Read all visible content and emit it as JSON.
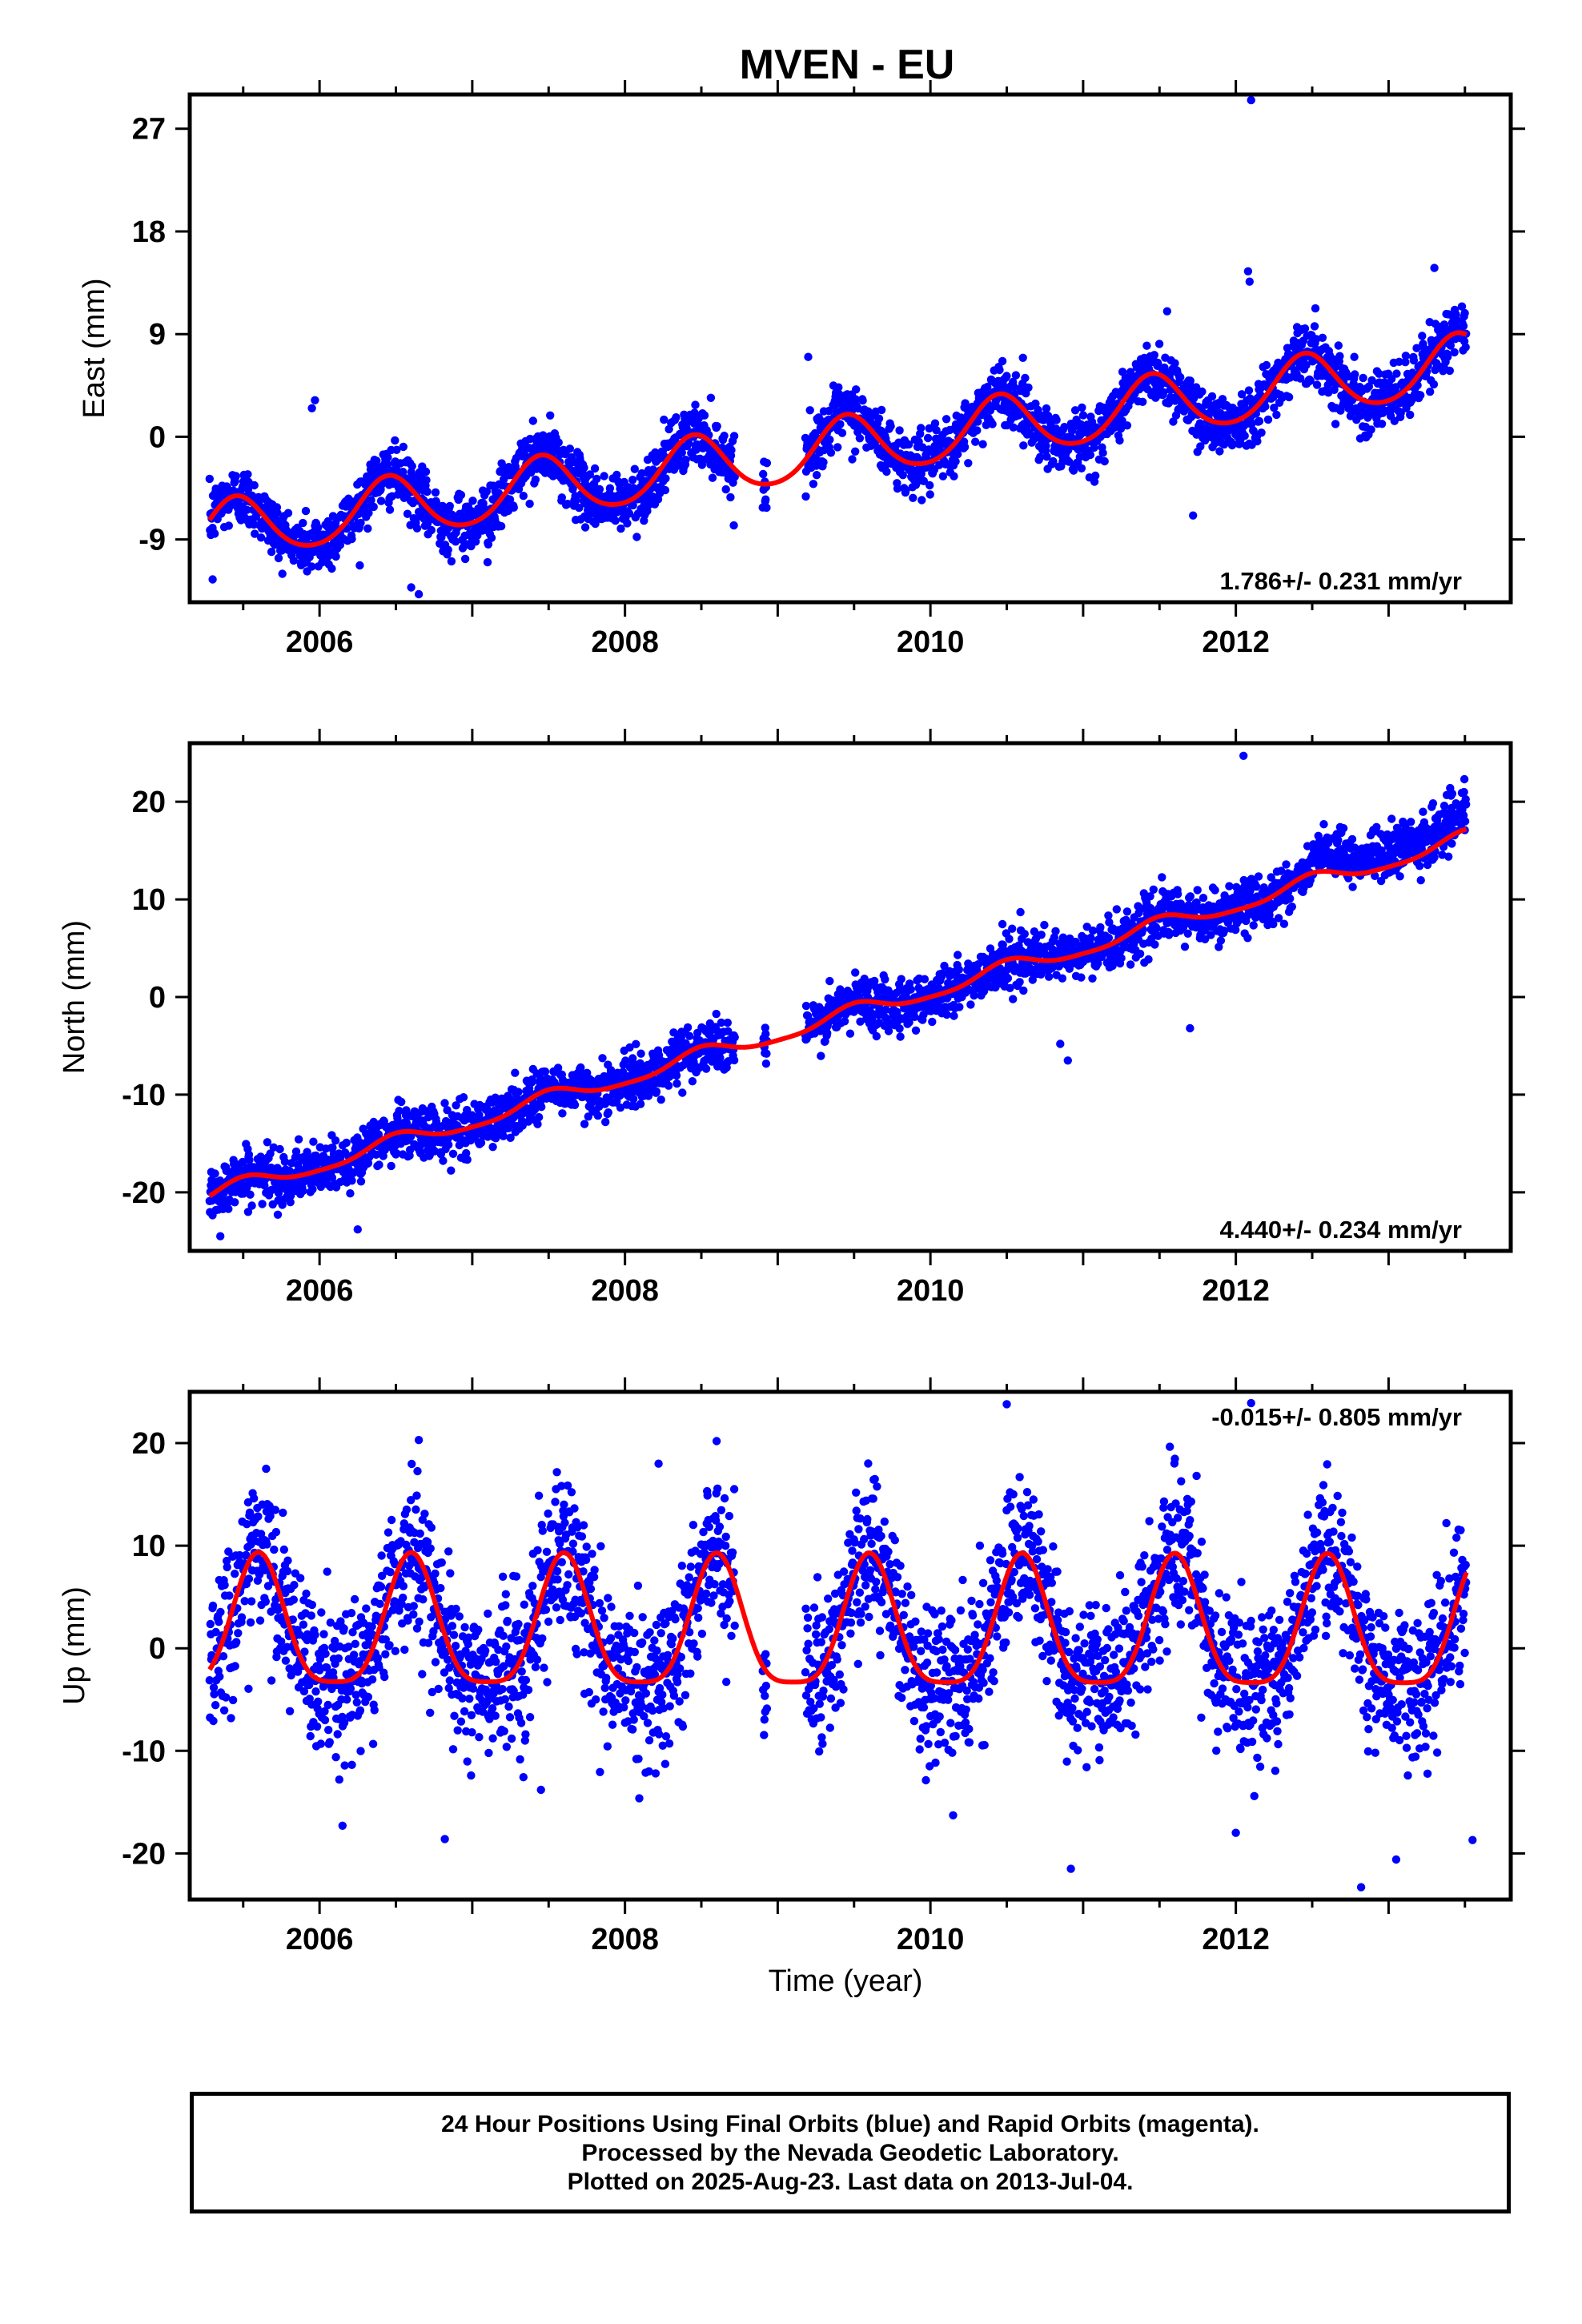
{
  "title": "MVEN - EU",
  "xlabel": "Time (year)",
  "colors": {
    "final_orbits": "#0000ff",
    "model": "#ff0000",
    "axes": "#000000"
  },
  "footer": {
    "line1": "24 Hour Positions Using Final Orbits (blue) and Rapid Orbits (magenta).",
    "line2": "Processed by the Nevada Geodetic Laboratory.",
    "line3": "Plotted on 2025-Aug-23. Last data on 2013-Jul-04."
  },
  "chart_data": [
    {
      "type": "scatter",
      "component": "East",
      "ylabel": "East (mm)",
      "rate_label": "1.786+/- 0.231 mm/yr",
      "xlim": [
        2005.15,
        2013.8
      ],
      "ylim": [
        -14.5,
        30
      ],
      "xticks": [
        2006,
        2008,
        2010,
        2012
      ],
      "xtick_labels": [
        "2006",
        "2008",
        "2010",
        "2012"
      ],
      "yticks": [
        -9,
        0,
        9,
        18,
        27
      ],
      "ytick_labels": [
        "-9",
        "0",
        "9",
        "18",
        "27"
      ],
      "grid": false,
      "model": {
        "rate": 1.786,
        "t0": 2009.3,
        "offset": -1.2,
        "annual_amp": 2.6,
        "annual_phase_peak": 0.45,
        "semiannual_amp": 0.3
      },
      "outliers": [
        {
          "x": 2005.3,
          "y": -12.5
        },
        {
          "x": 2005.95,
          "y": 2.5
        },
        {
          "x": 2005.97,
          "y": 3.2
        },
        {
          "x": 2006.6,
          "y": -13.2
        },
        {
          "x": 2006.65,
          "y": -13.8
        },
        {
          "x": 2007.1,
          "y": -11.0
        },
        {
          "x": 2009.2,
          "y": 7.0
        },
        {
          "x": 2011.55,
          "y": 11.0
        },
        {
          "x": 2011.72,
          "y": -6.9
        },
        {
          "x": 2012.1,
          "y": 29.5
        },
        {
          "x": 2012.08,
          "y": 14.5
        },
        {
          "x": 2012.09,
          "y": 13.6
        },
        {
          "x": 2013.3,
          "y": 14.8
        }
      ]
    },
    {
      "type": "scatter",
      "component": "North",
      "ylabel": "North (mm)",
      "rate_label": "4.440+/- 0.234 mm/yr",
      "xlim": [
        2005.15,
        2013.8
      ],
      "ylim": [
        -26,
        26
      ],
      "xticks": [
        2006,
        2008,
        2010,
        2012
      ],
      "xtick_labels": [
        "2006",
        "2008",
        "2010",
        "2012"
      ],
      "yticks": [
        -20,
        -10,
        0,
        10,
        20
      ],
      "ytick_labels": [
        "-20",
        "-10",
        "0",
        "10",
        "20"
      ],
      "grid": false,
      "model": {
        "rate": 4.44,
        "t0": 2009.3,
        "offset": -2.5,
        "annual_amp": 0.8,
        "annual_phase_peak": 0.5,
        "semiannual_amp": 0.2
      },
      "outliers": [
        {
          "x": 2005.35,
          "y": -24.5
        },
        {
          "x": 2006.25,
          "y": -23.8
        },
        {
          "x": 2010.85,
          "y": -4.8
        },
        {
          "x": 2010.9,
          "y": -6.5
        },
        {
          "x": 2012.05,
          "y": 24.7
        },
        {
          "x": 2011.7,
          "y": -3.2
        }
      ]
    },
    {
      "type": "scatter",
      "component": "Up",
      "ylabel": "Up (mm)",
      "rate_label": "-0.015+/- 0.805 mm/yr",
      "xlim": [
        2005.15,
        2013.8
      ],
      "ylim": [
        -24.5,
        25
      ],
      "xticks": [
        2006,
        2008,
        2010,
        2012
      ],
      "xtick_labels": [
        "2006",
        "2008",
        "2010",
        "2012"
      ],
      "yticks": [
        -20,
        -10,
        0,
        10,
        20
      ],
      "ytick_labels": [
        "-20",
        "-10",
        "0",
        "10",
        "20"
      ],
      "grid": false,
      "model": {
        "rate": -0.015,
        "t0": 2009.3,
        "offset": 1.5,
        "annual_amp": 6.3,
        "annual_phase_peak": 0.6,
        "semiannual_amp": 1.5
      },
      "outliers": [
        {
          "x": 2005.65,
          "y": 17.5
        },
        {
          "x": 2006.15,
          "y": -17.3
        },
        {
          "x": 2006.65,
          "y": 20.3
        },
        {
          "x": 2006.82,
          "y": -18.6
        },
        {
          "x": 2007.45,
          "y": -13.8
        },
        {
          "x": 2008.22,
          "y": 18.0
        },
        {
          "x": 2008.6,
          "y": 20.2
        },
        {
          "x": 2010.5,
          "y": 23.8
        },
        {
          "x": 2010.92,
          "y": -21.5
        },
        {
          "x": 2012.1,
          "y": 23.9
        },
        {
          "x": 2012.82,
          "y": -23.3
        },
        {
          "x": 2013.05,
          "y": -20.6
        },
        {
          "x": 2013.55,
          "y": -18.7
        },
        {
          "x": 2012.0,
          "y": -18.0
        }
      ]
    }
  ]
}
